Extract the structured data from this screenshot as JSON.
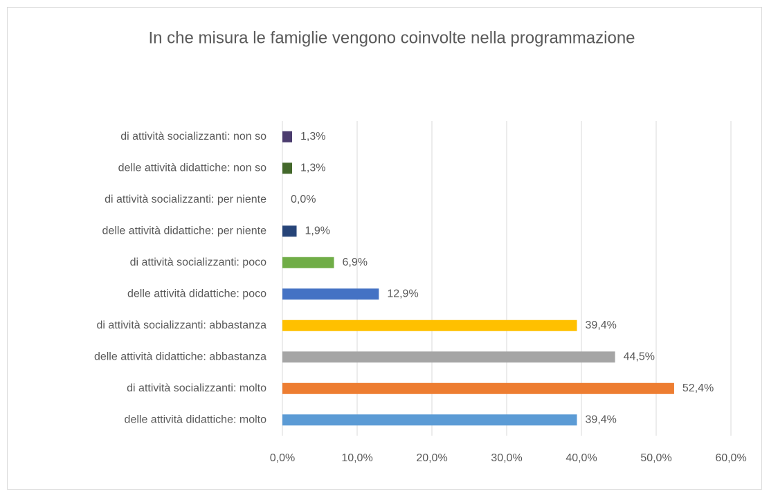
{
  "chart_data": {
    "type": "bar",
    "orientation": "horizontal",
    "title": "In che misura le famiglie vengono coinvolte nella programmazione",
    "categories": [
      "delle attività didattiche: molto",
      "di attività socializzanti: molto",
      "delle attività didattiche: abbastanza",
      "di attività socializzanti: abbastanza",
      "delle attività didattiche: poco",
      "di attività socializzanti: poco",
      "delle attività didattiche: per niente",
      "di attività socializzanti: per niente",
      "delle attività didattiche: non so",
      "di attività socializzanti: non so"
    ],
    "values": [
      39.4,
      52.4,
      44.5,
      39.4,
      12.9,
      6.9,
      1.9,
      0.0,
      1.3,
      1.3
    ],
    "value_labels": [
      "39,4%",
      "52,4%",
      "44,5%",
      "39,4%",
      "12,9%",
      "6,9%",
      "1,9%",
      "0,0%",
      "1,3%",
      "1,3%"
    ],
    "colors": [
      "#5b9bd5",
      "#ed7d31",
      "#a5a5a5",
      "#ffc000",
      "#4472c4",
      "#70ad47",
      "#264478",
      "#9e480e",
      "#43682b",
      "#4b3c6e"
    ],
    "xlim": [
      0,
      60
    ],
    "xticks": [
      {
        "value": 0,
        "label": "0,0%"
      },
      {
        "value": 10,
        "label": "10,0%"
      },
      {
        "value": 20,
        "label": "20,0%"
      },
      {
        "value": 30,
        "label": "30,0%"
      },
      {
        "value": 40,
        "label": "40,0%"
      },
      {
        "value": 50,
        "label": "50,0%"
      },
      {
        "value": 60,
        "label": "60,0%"
      }
    ],
    "grid": true
  }
}
